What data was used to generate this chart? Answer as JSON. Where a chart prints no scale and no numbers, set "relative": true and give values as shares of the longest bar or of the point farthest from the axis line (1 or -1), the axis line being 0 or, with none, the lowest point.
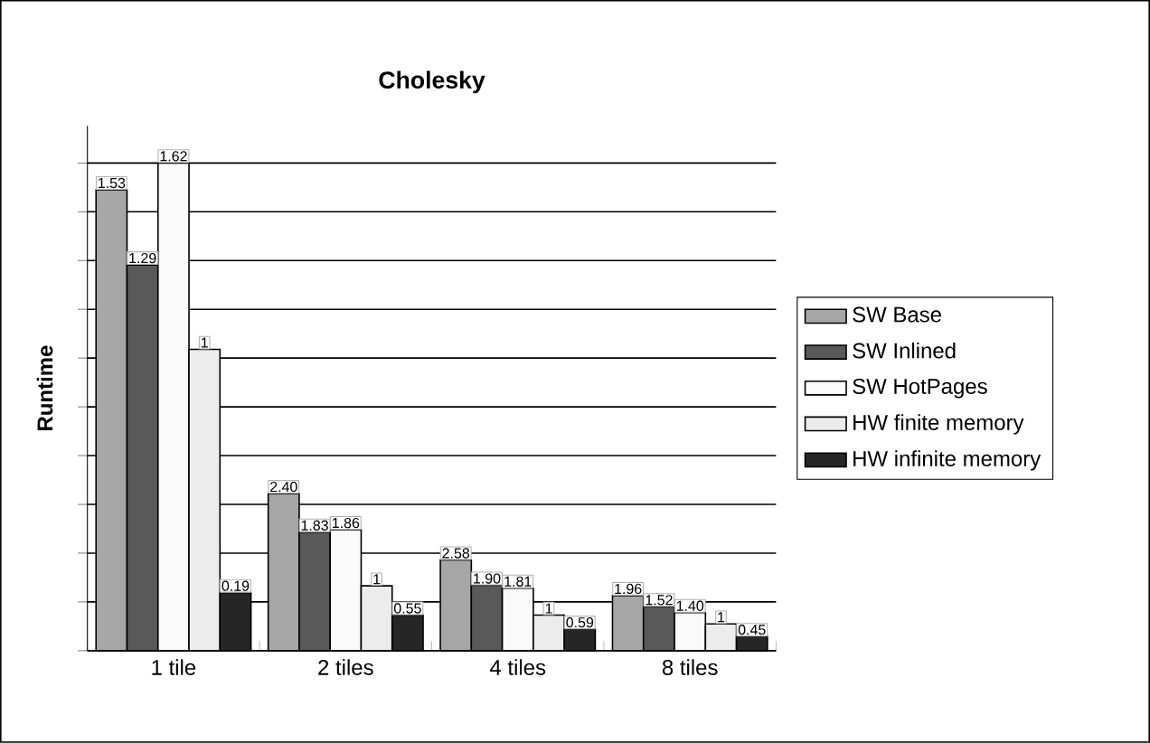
{
  "chart_data": {
    "type": "bar",
    "title": "Cholesky",
    "ylabel": "Runtime",
    "relative": true,
    "categories": [
      "1 tile",
      "2 tiles",
      "4 tiles",
      "8 tiles"
    ],
    "series": [
      {
        "name": "SW Base",
        "color": "#a6a6a6",
        "values": [
          0.945,
          0.322,
          0.186,
          0.113
        ]
      },
      {
        "name": "SW Inlined",
        "color": "#595959",
        "values": [
          0.791,
          0.243,
          0.134,
          0.09
        ]
      },
      {
        "name": "SW HotPages",
        "color": "#fafafa",
        "values": [
          1,
          0.248,
          0.128,
          0.078
        ]
      },
      {
        "name": "HW finite memory",
        "color": "#ececec",
        "values": [
          0.618,
          0.133,
          0.073,
          0.055
        ]
      },
      {
        "name": "HW infinite memory",
        "color": "#262626",
        "values": [
          0.119,
          0.073,
          0.044,
          0.029
        ]
      }
    ],
    "annotations": [
      "1.53",
      "1.29",
      "1.62",
      "1",
      "0.19",
      "2.40",
      "1.83",
      "1.86",
      "1",
      "0.55",
      "2.58",
      "1.90",
      "1.81",
      "1",
      "0.59",
      "1.96",
      "1.52",
      "1.40",
      "1",
      "0.45"
    ],
    "grid": "y",
    "legend": "right"
  }
}
